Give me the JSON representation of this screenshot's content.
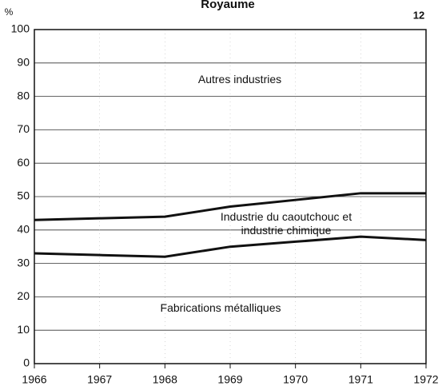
{
  "chart_data": {
    "type": "stacked-line",
    "title": "Royaume",
    "page_number": "12",
    "y_axis_label": "%",
    "x": [
      1966,
      1967,
      1968,
      1969,
      1970,
      1971,
      1972
    ],
    "xlim": [
      1966,
      1972
    ],
    "xticks": [
      1966,
      1967,
      1968,
      1969,
      1970,
      1971,
      1972
    ],
    "ylim": [
      0,
      100
    ],
    "yticks": [
      0,
      10,
      20,
      30,
      40,
      50,
      60,
      70,
      80,
      90,
      100
    ],
    "grid": true,
    "color": "#111111",
    "series": [
      {
        "name": "Fabrications métalliques",
        "color": "#111111",
        "values": [
          33,
          32.5,
          32,
          35,
          36.5,
          38,
          37
        ]
      },
      {
        "name": "Industrie du caoutchouc et industrie chimique",
        "color": "#111111",
        "values": [
          10,
          11,
          12,
          12,
          12.5,
          13,
          14
        ]
      }
    ],
    "annotations": [
      "Autres industries"
    ]
  }
}
